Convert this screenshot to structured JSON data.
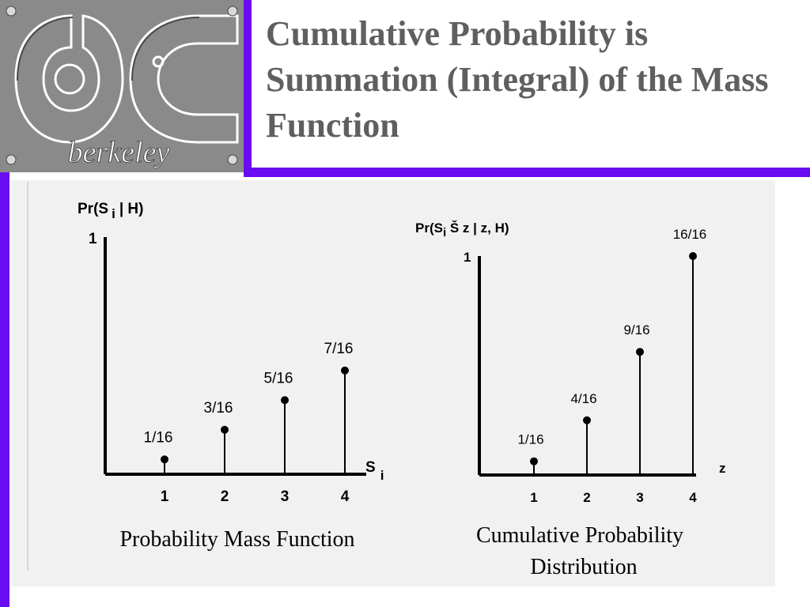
{
  "slide": {
    "title": "Cumulative Probability is Summation (Integral) of the Mass Function",
    "logo_text": "berkeley"
  },
  "colors": {
    "accent": "#6a0cf2",
    "title": "#5f5f5f",
    "panel": "#f1f1f1",
    "ink": "#000000"
  },
  "chart_data": [
    {
      "type": "bar",
      "style": "stem",
      "caption": "Probability Mass Function",
      "ylabel": "Pr(S",
      "ylabel_sub": "i",
      "ylabel_tail": "| H)",
      "xlabel": "S",
      "xlabel_sub": "i",
      "y_top_tick": "1",
      "ylim": [
        0,
        1
      ],
      "categories": [
        "1",
        "2",
        "3",
        "4"
      ],
      "values": [
        0.0625,
        0.1875,
        0.3125,
        0.4375
      ],
      "value_labels": [
        "1/16",
        "3/16",
        "5/16",
        "7/16"
      ]
    },
    {
      "type": "bar",
      "style": "stem",
      "caption_line1": "Cumulative Probability",
      "caption_line2": "Distribution",
      "ylabel": "Pr(S",
      "ylabel_sub": "i",
      "ylabel_tail": " Š z | z, H)",
      "xlabel": "z",
      "y_top_tick": "1",
      "ylim": [
        0,
        1
      ],
      "categories": [
        "1",
        "2",
        "3",
        "4"
      ],
      "values": [
        0.0625,
        0.25,
        0.5625,
        1.0
      ],
      "value_labels": [
        "1/16",
        "4/16",
        "9/16",
        "16/16"
      ]
    }
  ]
}
